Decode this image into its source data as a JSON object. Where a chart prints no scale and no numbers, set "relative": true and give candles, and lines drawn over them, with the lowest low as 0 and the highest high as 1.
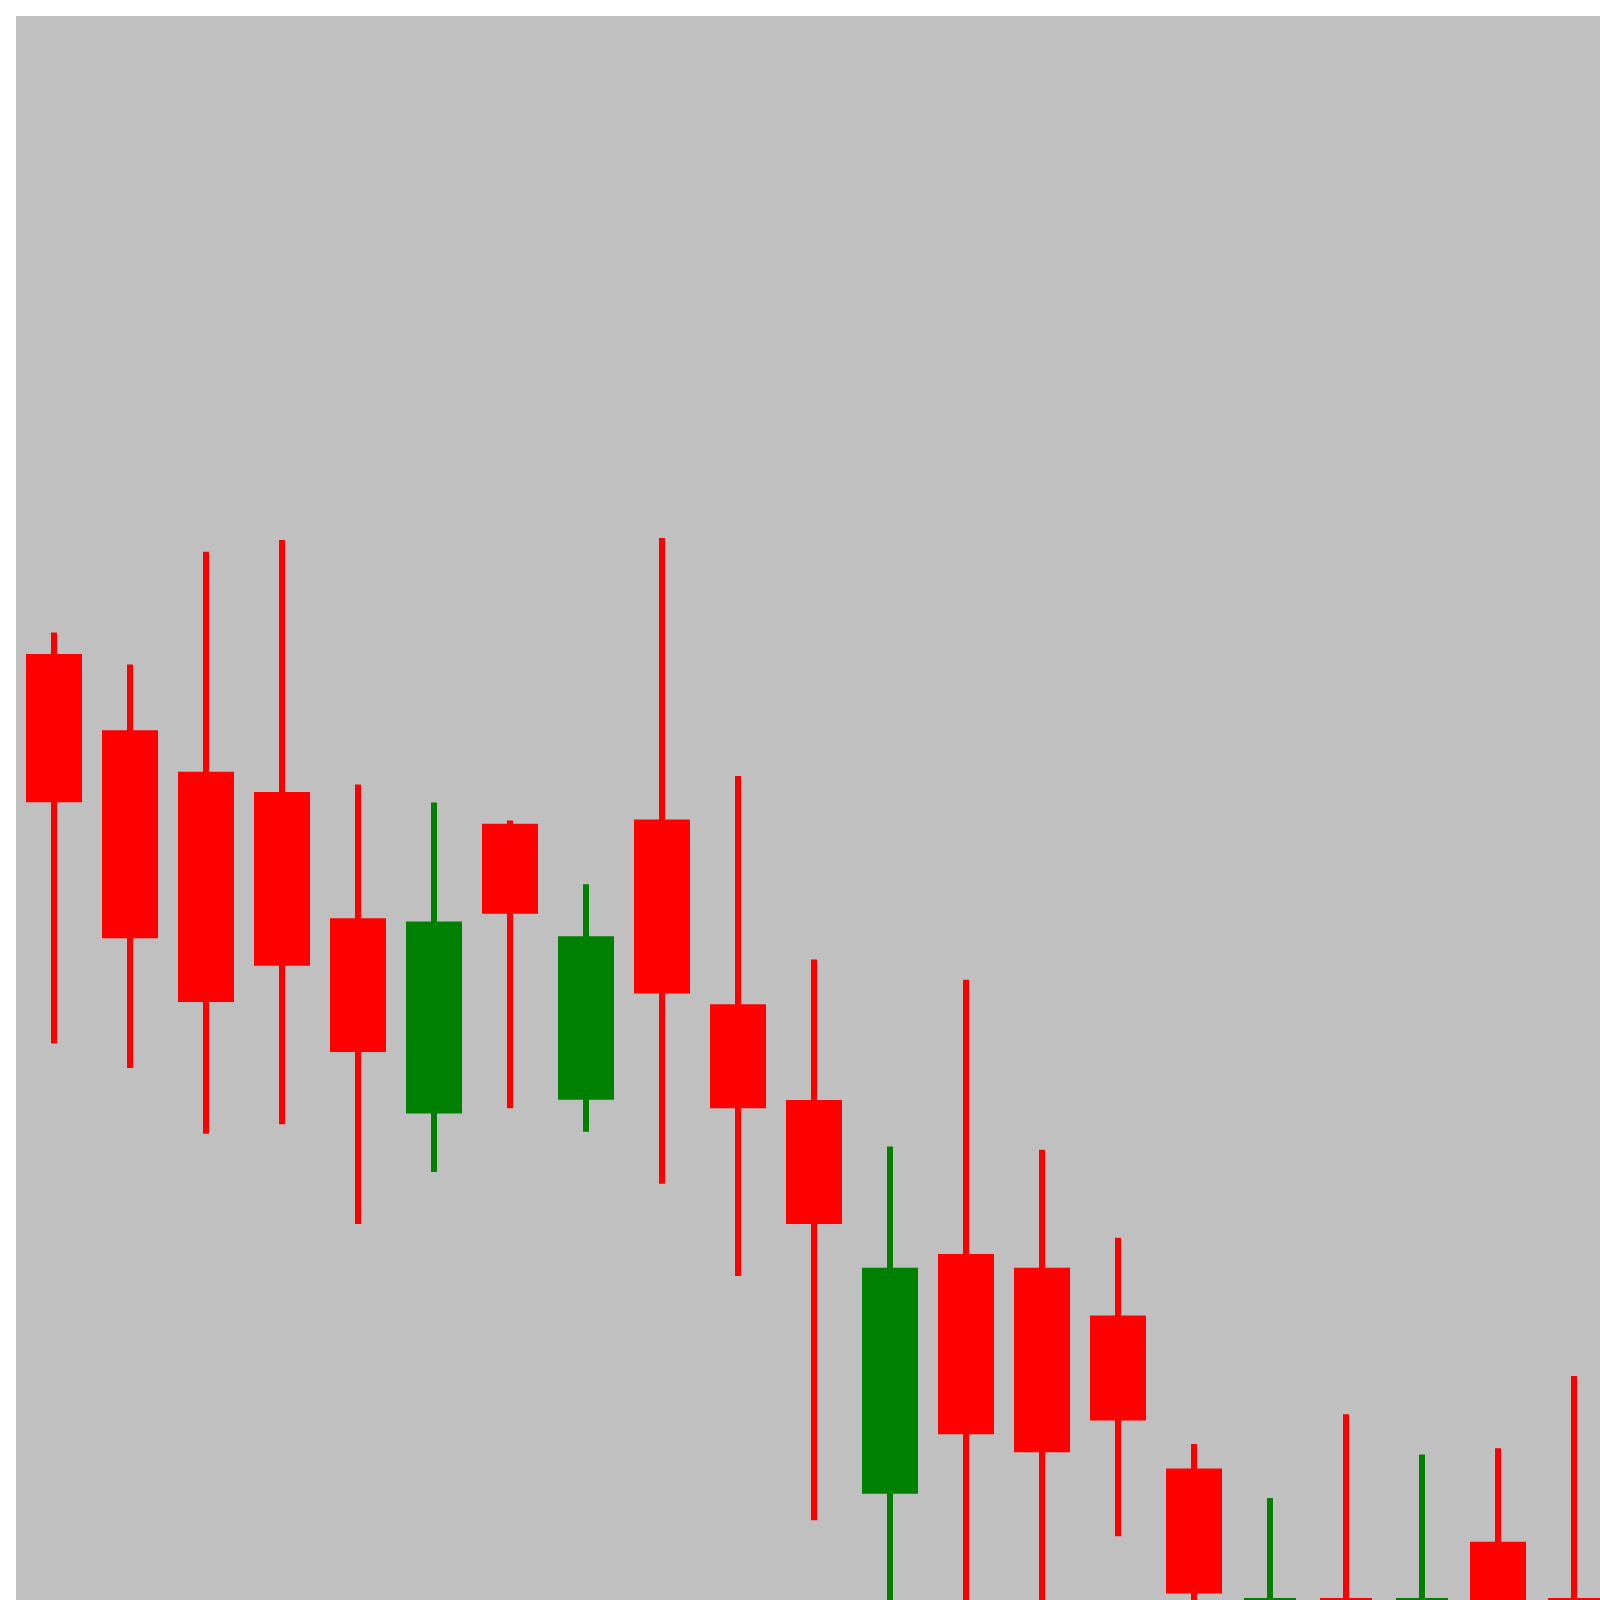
{
  "chart_data": {
    "type": "candlestick",
    "relative": true,
    "categories": [
      null,
      null,
      null,
      null,
      null,
      null,
      null,
      null,
      null,
      null,
      null,
      null,
      null,
      null,
      null,
      null,
      null,
      null,
      null,
      null,
      null
    ],
    "ohlc": [
      [
        0.889,
        0.911,
        0.524,
        0.753
      ],
      [
        0.817,
        0.881,
        0.501,
        0.625
      ],
      [
        0.778,
        0.987,
        0.439,
        0.565
      ],
      [
        0.759,
        0.998,
        0.448,
        0.599
      ],
      [
        0.64,
        0.768,
        0.354,
        0.518
      ],
      [
        0.46,
        0.751,
        0.403,
        0.637
      ],
      [
        0.729,
        0.734,
        0.463,
        0.648
      ],
      [
        0.473,
        0.674,
        0.441,
        0.623
      ],
      [
        0.733,
        1,
        0.392,
        0.573
      ],
      [
        0.559,
        0.776,
        0.305,
        0.465
      ],
      [
        0.469,
        0.603,
        0.075,
        0.356
      ],
      [
        0.102,
        0.427,
        0,
        0.311
      ],
      [
        0.324,
        0.584,
        0,
        0.158
      ],
      [
        0.311,
        0.424,
        0,
        0.141
      ],
      [
        0.266,
        0.341,
        0.06,
        0.171
      ],
      [
        0.122,
        0.147,
        0,
        0.008
      ],
      [
        0,
        0.096,
        0,
        0
      ],
      [
        0,
        0.175,
        0,
        0
      ],
      [
        0,
        0.137,
        0,
        0
      ],
      [
        0.053,
        0.143,
        0,
        0
      ],
      [
        0,
        0.211,
        0,
        0
      ]
    ],
    "colors": [
      "#ff0000",
      "#ff0000",
      "#ff0000",
      "#ff0000",
      "#ff0000",
      "#008000",
      "#ff0000",
      "#008000",
      "#ff0000",
      "#ff0000",
      "#ff0000",
      "#008000",
      "#ff0000",
      "#ff0000",
      "#ff0000",
      "#ff0000",
      "#008000",
      "#ff0000",
      "#008000",
      "#ff0000",
      "#ff0000"
    ]
  }
}
